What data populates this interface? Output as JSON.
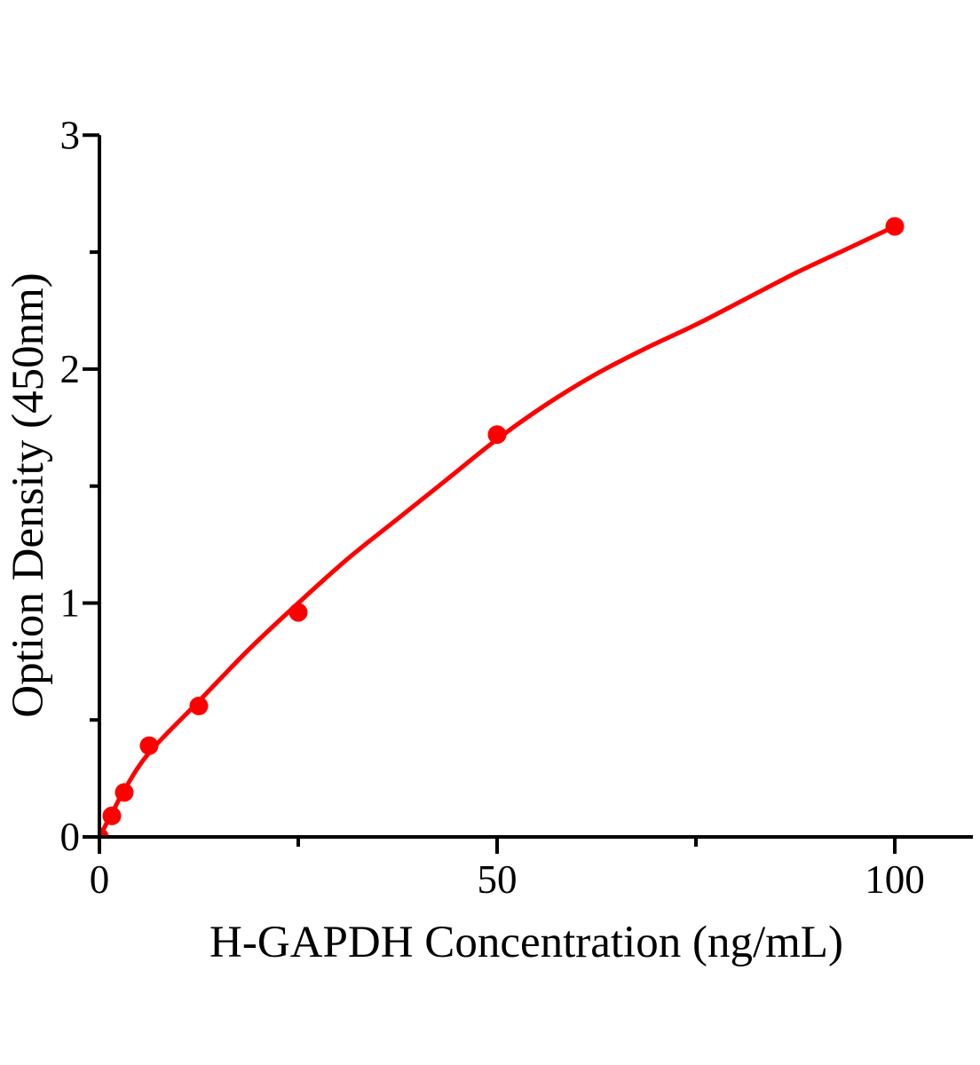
{
  "figure": {
    "background_color": "#ffffff",
    "axis_color": "#000000",
    "series_color": "#ff0000"
  },
  "chart_data": {
    "type": "scatter",
    "title": "",
    "xlabel": "H-GAPDH Concentration（ng/mL）",
    "ylabel": "Option Density（450nm）",
    "xlim": [
      0,
      110
    ],
    "ylim": [
      0,
      3
    ],
    "grid": false,
    "legend_position": "none",
    "fit_line": true,
    "x_ticks_major": [
      0,
      50,
      100
    ],
    "x_tick_labels": [
      "0",
      "50",
      "100"
    ],
    "x_ticks_minor": [
      25,
      75
    ],
    "y_ticks_major": [
      0,
      1,
      2,
      3
    ],
    "y_tick_labels": [
      "0",
      "1",
      "2",
      "3"
    ],
    "y_ticks_minor": [
      0.5,
      1.5,
      2.5
    ],
    "points": [
      {
        "x": 0,
        "y": 0.0
      },
      {
        "x": 1.56,
        "y": 0.09
      },
      {
        "x": 3.13,
        "y": 0.19
      },
      {
        "x": 6.25,
        "y": 0.39
      },
      {
        "x": 12.5,
        "y": 0.56
      },
      {
        "x": 25,
        "y": 0.96
      },
      {
        "x": 50,
        "y": 1.72
      },
      {
        "x": 100,
        "y": 2.61
      }
    ],
    "fit_curve": [
      [
        0,
        0.0
      ],
      [
        1.56,
        0.1
      ],
      [
        3.13,
        0.2
      ],
      [
        6.25,
        0.36
      ],
      [
        12.5,
        0.58
      ],
      [
        18.75,
        0.8
      ],
      [
        25,
        1.0
      ],
      [
        31.25,
        1.19
      ],
      [
        37.5,
        1.36
      ],
      [
        43.75,
        1.53
      ],
      [
        50,
        1.7
      ],
      [
        56.25,
        1.85
      ],
      [
        62.5,
        1.98
      ],
      [
        68.75,
        2.09
      ],
      [
        75,
        2.19
      ],
      [
        81.25,
        2.3
      ],
      [
        87.5,
        2.41
      ],
      [
        93.75,
        2.51
      ],
      [
        100,
        2.61
      ]
    ]
  }
}
